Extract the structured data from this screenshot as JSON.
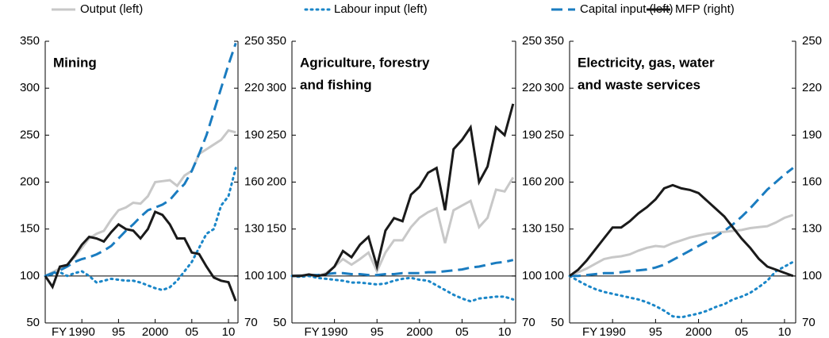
{
  "chart_data": [
    {
      "type": "line",
      "title": [
        "Mining"
      ],
      "x": [
        1985,
        1986,
        1987,
        1988,
        1989,
        1990,
        1991,
        1992,
        1993,
        1994,
        1995,
        1996,
        1997,
        1998,
        1999,
        2000,
        2001,
        2002,
        2003,
        2004,
        2005,
        2006,
        2007,
        2008,
        2009,
        2010,
        2011
      ],
      "xlim": [
        1985,
        2011.3
      ],
      "x_label": "FY",
      "xticks": [
        1990,
        {
          "value": 1995,
          "label": "95"
        },
        2000,
        {
          "value": 2005,
          "label": "05"
        },
        {
          "value": 2010,
          "label": "10"
        }
      ],
      "ylim": [
        50,
        350
      ],
      "yticks": [
        50,
        100,
        150,
        200,
        250,
        300,
        350
      ],
      "y2lim": [
        70,
        250
      ],
      "y2ticks": [
        70,
        100,
        130,
        160,
        190,
        220,
        250
      ],
      "hline": 100,
      "series": [
        {
          "name": "Output (left)",
          "color": "#c8c8c8",
          "style": "solid",
          "values": [
            100,
            104,
            108,
            112,
            120,
            130,
            140,
            145,
            148,
            160,
            170,
            173,
            178,
            177,
            185,
            200,
            201,
            202,
            196,
            207,
            212,
            230,
            235,
            240,
            245,
            255,
            253
          ]
        },
        {
          "name": "Labour input (left)",
          "color": "#1a86c8",
          "style": "dotted",
          "values": [
            100,
            102,
            104,
            100,
            103,
            105,
            100,
            93,
            95,
            97,
            96,
            95,
            95,
            93,
            90,
            87,
            85,
            88,
            95,
            105,
            115,
            130,
            145,
            150,
            175,
            185,
            215
          ]
        },
        {
          "name": "Capital input (left)",
          "color": "#1a7cc0",
          "style": "dashed",
          "values": [
            100,
            103,
            106,
            110,
            115,
            118,
            120,
            123,
            127,
            132,
            140,
            148,
            155,
            163,
            170,
            173,
            176,
            181,
            190,
            198,
            212,
            230,
            250,
            275,
            300,
            325,
            348
          ]
        },
        {
          "name": "MFP (right)",
          "color": "#1a1a1a",
          "style": "solid",
          "axis": "y2",
          "values": [
            100,
            93,
            106,
            107,
            113,
            120,
            125,
            124,
            122,
            128,
            133,
            130,
            129,
            124,
            130,
            141,
            139,
            133,
            124,
            124,
            115,
            114,
            106,
            99,
            97,
            96,
            84
          ]
        }
      ]
    },
    {
      "type": "line",
      "title": [
        "Agriculture, forestry",
        "and fishing"
      ],
      "x": [
        1985,
        1986,
        1987,
        1988,
        1989,
        1990,
        1991,
        1992,
        1993,
        1994,
        1995,
        1996,
        1997,
        1998,
        1999,
        2000,
        2001,
        2002,
        2003,
        2004,
        2005,
        2006,
        2007,
        2008,
        2009,
        2010,
        2011
      ],
      "xlim": [
        1985,
        2011.3
      ],
      "x_label": "FY",
      "xticks": [
        1990,
        {
          "value": 1995,
          "label": "95"
        },
        2000,
        {
          "value": 2005,
          "label": "05"
        },
        {
          "value": 2010,
          "label": "10"
        }
      ],
      "ylim": [
        50,
        350
      ],
      "yticks": [
        50,
        100,
        150,
        200,
        250,
        300,
        350
      ],
      "y2lim": [
        70,
        250
      ],
      "y2ticks": [
        70,
        100,
        130,
        160,
        190,
        220,
        250
      ],
      "hline": 100,
      "series": [
        {
          "name": "Output (left)",
          "color": "#c8c8c8",
          "style": "solid",
          "values": [
            100,
            101,
            100,
            100,
            103,
            110,
            118,
            112,
            118,
            125,
            105,
            125,
            138,
            138,
            152,
            162,
            168,
            172,
            135,
            170,
            175,
            180,
            152,
            162,
            192,
            190,
            205
          ]
        },
        {
          "name": "Labour input (left)",
          "color": "#1a86c8",
          "style": "dotted",
          "values": [
            100,
            99,
            100,
            98,
            97,
            96,
            95,
            93,
            93,
            92,
            91,
            92,
            95,
            97,
            98,
            96,
            95,
            90,
            85,
            80,
            76,
            73,
            76,
            77,
            78,
            78,
            75
          ]
        },
        {
          "name": "Capital input (left)",
          "color": "#1a7cc0",
          "style": "dashed",
          "values": [
            100,
            100,
            101,
            101,
            102,
            103,
            103,
            102,
            102,
            101,
            101,
            102,
            102,
            103,
            103,
            103,
            104,
            104,
            105,
            106,
            107,
            109,
            110,
            112,
            114,
            115,
            117
          ]
        },
        {
          "name": "MFP (right)",
          "color": "#1a1a1a",
          "style": "solid",
          "axis": "y2",
          "values": [
            100,
            100,
            101,
            100,
            101,
            106,
            116,
            112,
            120,
            125,
            106,
            129,
            137,
            135,
            152,
            157,
            166,
            169,
            142,
            181,
            187,
            195,
            160,
            170,
            195,
            190,
            210
          ]
        }
      ]
    },
    {
      "type": "line",
      "title": [
        "Electricity, gas, water",
        "and waste services"
      ],
      "x": [
        1985,
        1986,
        1987,
        1988,
        1989,
        1990,
        1991,
        1992,
        1993,
        1994,
        1995,
        1996,
        1997,
        1998,
        1999,
        2000,
        2001,
        2002,
        2003,
        2004,
        2005,
        2006,
        2007,
        2008,
        2009,
        2010,
        2011
      ],
      "xlim": [
        1985,
        2011.3
      ],
      "x_label": "FY",
      "xticks": [
        1990,
        {
          "value": 1995,
          "label": "95"
        },
        2000,
        {
          "value": 2005,
          "label": "05"
        },
        {
          "value": 2010,
          "label": "10"
        }
      ],
      "ylim": [
        50,
        350
      ],
      "yticks": [
        50,
        100,
        150,
        200,
        250,
        300,
        350
      ],
      "y2lim": [
        70,
        250
      ],
      "y2ticks": [
        70,
        100,
        130,
        160,
        190,
        220,
        250
      ],
      "hline": 100,
      "series": [
        {
          "name": "Output (left)",
          "color": "#c8c8c8",
          "style": "solid",
          "values": [
            100,
            104,
            108,
            113,
            118,
            120,
            121,
            123,
            127,
            130,
            132,
            131,
            135,
            138,
            141,
            143,
            145,
            146,
            147,
            148,
            149,
            151,
            152,
            153,
            157,
            162,
            165
          ]
        },
        {
          "name": "Labour input (left)",
          "color": "#1a86c8",
          "style": "dotted",
          "values": [
            100,
            95,
            90,
            86,
            83,
            81,
            79,
            77,
            75,
            72,
            68,
            63,
            57,
            56,
            58,
            60,
            63,
            67,
            70,
            75,
            78,
            82,
            88,
            95,
            105,
            110,
            115
          ]
        },
        {
          "name": "Capital input (left)",
          "color": "#1a7cc0",
          "style": "dashed",
          "values": [
            100,
            100,
            101,
            102,
            103,
            103,
            104,
            105,
            106,
            107,
            109,
            112,
            117,
            122,
            127,
            132,
            137,
            142,
            148,
            155,
            163,
            172,
            182,
            192,
            200,
            208,
            215
          ]
        },
        {
          "name": "MFP (right)",
          "color": "#1a1a1a",
          "style": "solid",
          "axis": "y2",
          "values": [
            100,
            104,
            110,
            117,
            124,
            131,
            131,
            135,
            140,
            144,
            149,
            156,
            158,
            156,
            155,
            153,
            148,
            143,
            138,
            131,
            124,
            118,
            111,
            106,
            104,
            102,
            100
          ]
        }
      ]
    }
  ]
}
